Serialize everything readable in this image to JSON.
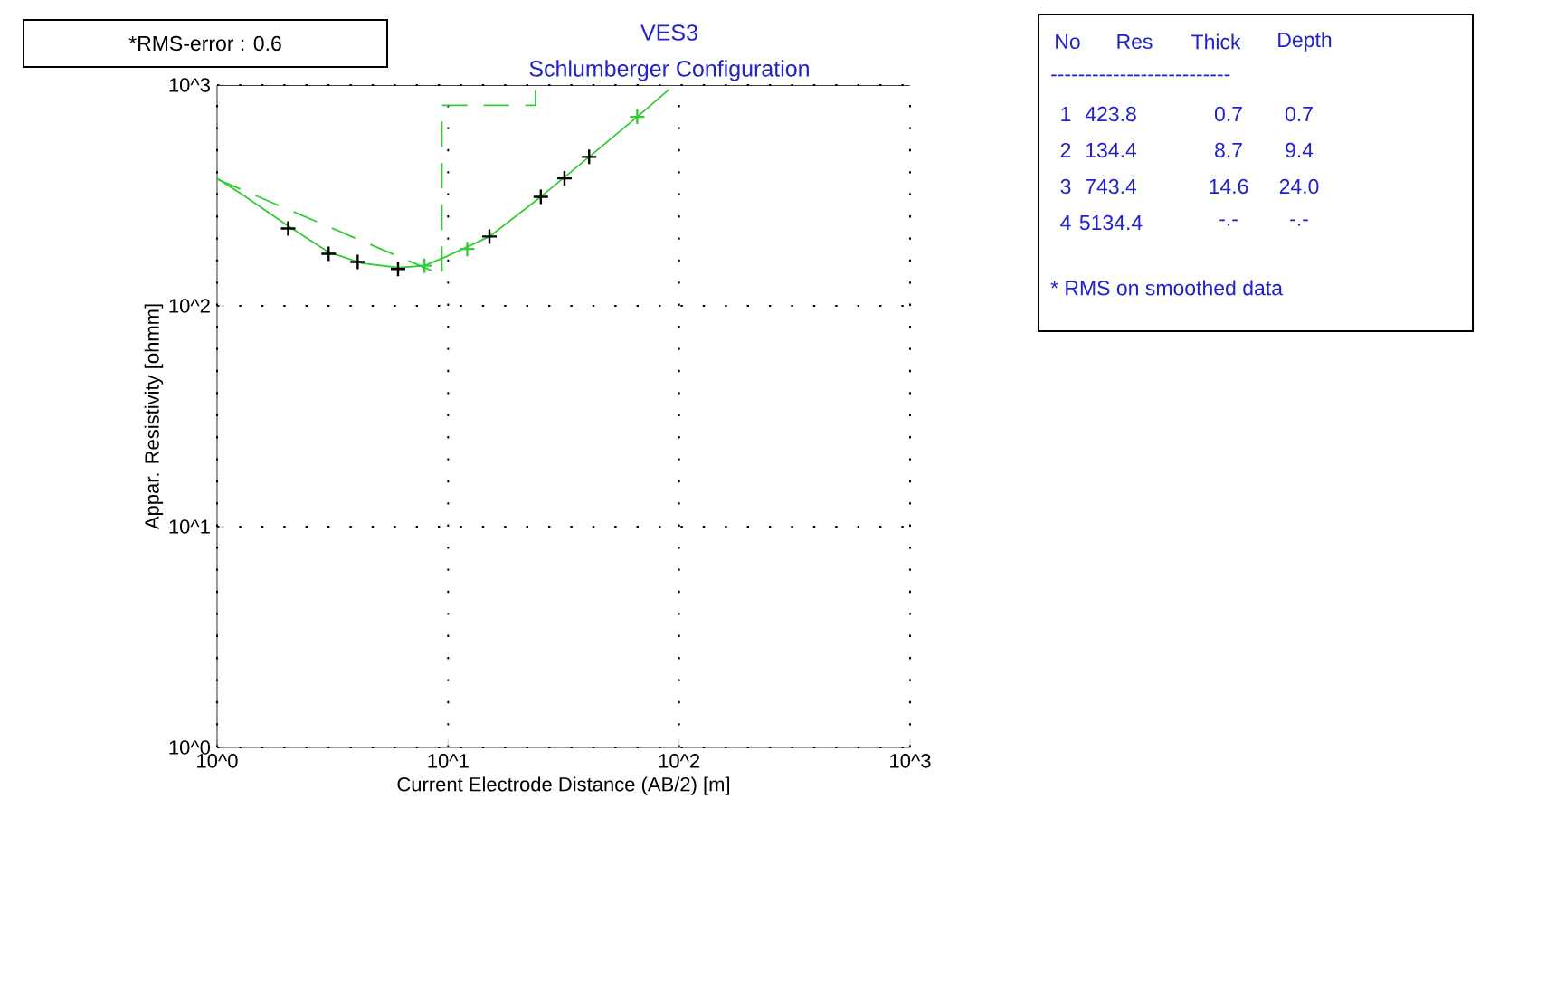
{
  "chart_data": {
    "type": "line",
    "title": "VES3",
    "subtitle": "Schlumberger Configuration",
    "xlabel": "Current Electrode Distance (AB/2) [m]",
    "ylabel": "Appar. Resistivity [ohmm]",
    "log": "xy",
    "grid": true,
    "xlim": [
      1,
      1000
    ],
    "ylim": [
      1,
      1000
    ],
    "xticks": [
      {
        "value": 1,
        "label": "10^0"
      },
      {
        "value": 10,
        "label": "10^1"
      },
      {
        "value": 100,
        "label": "10^2"
      },
      {
        "value": 1000,
        "label": "10^3"
      }
    ],
    "yticks": [
      {
        "value": 1,
        "label": "10^0"
      },
      {
        "value": 10,
        "label": "10^1"
      },
      {
        "value": 100,
        "label": "10^2"
      },
      {
        "value": 1000,
        "label": "10^3"
      }
    ],
    "series": [
      {
        "color": "#33cc33",
        "line_style": "solid",
        "x": [
          1,
          1.27,
          2.03,
          3.04,
          4.23,
          6.07,
          7.9,
          9.8,
          15.1,
          25.2,
          40.8,
          65.9,
          90.5
        ],
        "values": [
          378,
          322,
          230,
          175,
          156,
          149,
          152,
          167,
          206,
          312,
          473,
          718,
          955
        ]
      },
      {
        "type": "line",
        "color": "#33cc33",
        "line_style": "dashed",
        "x": [
          1,
          8.4,
          9.4,
          9.4,
          23.9,
          23.9
        ],
        "values": [
          375,
          145,
          136,
          810,
          810,
          1000
        ]
      },
      {
        "type": "scatter",
        "color": "#000000",
        "marker": "cross",
        "x": [
          2.03,
          3.04,
          4.06,
          6.07,
          15.1,
          25.2,
          31.9,
          40.8
        ],
        "values": [
          224,
          172,
          158,
          147,
          206,
          312,
          378,
          473
        ]
      },
      {
        "type": "scatter",
        "color": "#33cc33",
        "marker": "cross",
        "x": [
          7.9,
          12.1,
          65.9
        ],
        "values": [
          152,
          181,
          718
        ]
      }
    ],
    "annotations": [
      "*RMS-error :  0.6",
      "No",
      "Res",
      "Thick",
      "Depth",
      "--------------------------",
      "1",
      "423.8",
      "0.7",
      "0.7",
      "2",
      "134.4",
      "8.7",
      "9.4",
      "3",
      "743.4",
      "14.6",
      "24.0",
      "4",
      "5134.4",
      "-.-",
      "-.-",
      "* RMS on smoothed data"
    ]
  }
}
